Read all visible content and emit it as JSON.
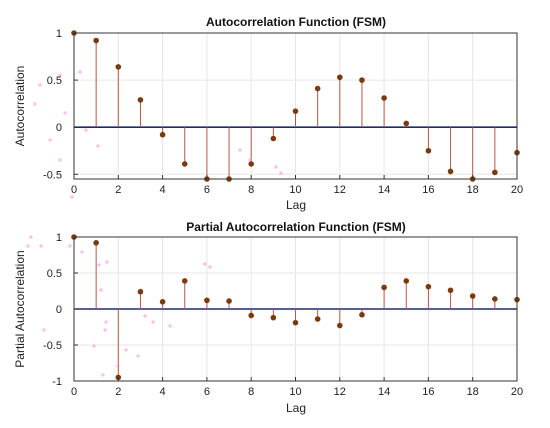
{
  "chart_data": [
    {
      "type": "stem",
      "title": "Autocorrelation Function (FSM)",
      "xlabel": "Lag",
      "ylabel": "Autocorrelation",
      "xlim": [
        0,
        20
      ],
      "ylim": [
        -0.55,
        1.0
      ],
      "xticks": [
        0,
        2,
        4,
        6,
        8,
        10,
        12,
        14,
        16,
        18,
        20
      ],
      "yticks": [
        -0.5,
        0,
        0.5,
        1
      ],
      "ytick_labels": [
        "-0.5",
        "0",
        "0.5",
        "1"
      ],
      "grid": true,
      "x": [
        0,
        1,
        2,
        3,
        4,
        5,
        6,
        7,
        8,
        9,
        10,
        11,
        12,
        13,
        14,
        15,
        16,
        17,
        18,
        19,
        20
      ],
      "values": [
        1.0,
        0.92,
        0.64,
        0.29,
        -0.08,
        -0.39,
        -0.55,
        -0.55,
        -0.39,
        -0.12,
        0.17,
        0.41,
        0.53,
        0.5,
        0.31,
        0.04,
        -0.25,
        -0.47,
        -0.55,
        -0.48,
        -0.27
      ]
    },
    {
      "type": "stem",
      "title": "Partial Autocorrelation Function (FSM)",
      "xlabel": "Lag",
      "ylabel": "Partial Autocorrelation",
      "xlim": [
        0,
        20
      ],
      "ylim": [
        -1.0,
        1.0
      ],
      "xticks": [
        0,
        2,
        4,
        6,
        8,
        10,
        12,
        14,
        16,
        18,
        20
      ],
      "yticks": [
        -1,
        -0.5,
        0,
        0.5,
        1
      ],
      "ytick_labels": [
        "-1",
        "-0.5",
        "0",
        "0.5",
        "1"
      ],
      "grid": true,
      "x": [
        0,
        1,
        2,
        3,
        4,
        5,
        6,
        7,
        8,
        9,
        10,
        11,
        12,
        13,
        14,
        15,
        16,
        17,
        18,
        19,
        20
      ],
      "values": [
        1.0,
        0.92,
        -0.95,
        0.24,
        0.1,
        0.39,
        0.12,
        0.11,
        -0.09,
        -0.12,
        -0.19,
        -0.14,
        -0.23,
        -0.08,
        0.3,
        0.39,
        0.31,
        0.26,
        0.18,
        0.14,
        0.13
      ]
    }
  ],
  "colors": {
    "stem": "#b5574a",
    "marker": "#7a3a10",
    "zero_line": "#1f2a6b",
    "grid": "#e6e6e6",
    "frame": "#333333",
    "noise": "#ff7fd8"
  }
}
